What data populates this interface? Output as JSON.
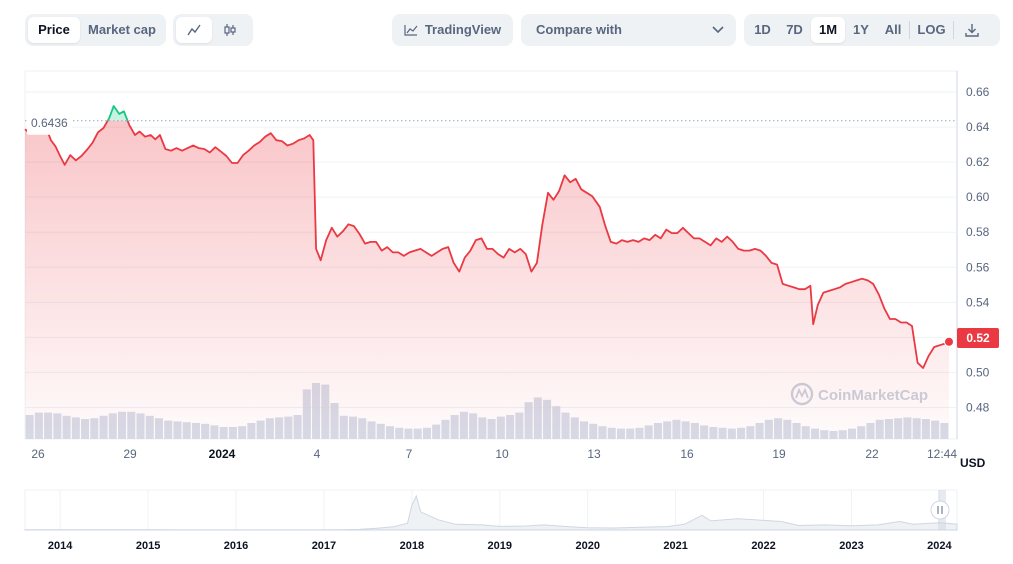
{
  "toolbar": {
    "metric_tabs": [
      {
        "label": "Price",
        "active": true
      },
      {
        "label": "Market cap",
        "active": false
      }
    ],
    "chart_modes": [
      {
        "icon": "line-chart-icon",
        "active": true
      },
      {
        "icon": "candlestick-icon",
        "active": false
      }
    ],
    "tradingview_label": "TradingView",
    "compare_label": "Compare with",
    "ranges": [
      {
        "label": "1D",
        "active": false
      },
      {
        "label": "7D",
        "active": false
      },
      {
        "label": "1M",
        "active": true
      },
      {
        "label": "1Y",
        "active": false
      },
      {
        "label": "All",
        "active": false
      }
    ],
    "log_label": "LOG",
    "download_icon": "download-icon"
  },
  "watermark": "CoinMarketCap",
  "colors": {
    "up": "#16c784",
    "down": "#ea3943",
    "volume": "#cfd6e4",
    "accent_bg": "#eff2f5"
  },
  "chart_data": {
    "type": "line",
    "open_price_label": "0.6436",
    "current_price_label": "0.52",
    "y_ticks": [
      "0.66",
      "0.64",
      "0.62",
      "0.60",
      "0.58",
      "0.56",
      "0.54",
      "0.52",
      "0.50",
      "0.48"
    ],
    "ylim": [
      0.462,
      0.672
    ],
    "x_ticks": [
      "26",
      "29",
      "2024",
      "4",
      "7",
      "10",
      "13",
      "16",
      "19",
      "22",
      "12:44"
    ],
    "bold_x_ticks": [
      "2024"
    ],
    "y_unit": "USD",
    "reference_price": 0.6436,
    "x_range": [
      0,
      100
    ],
    "prices": [
      [
        0,
        0.6388
      ],
      [
        0.5,
        0.6365
      ],
      [
        1,
        0.6395
      ],
      [
        1.6,
        0.6436
      ],
      [
        2.2,
        0.641
      ],
      [
        2.8,
        0.6325
      ],
      [
        3.3,
        0.629
      ],
      [
        3.8,
        0.6235
      ],
      [
        4.3,
        0.6185
      ],
      [
        4.9,
        0.624
      ],
      [
        5.5,
        0.621
      ],
      [
        6.1,
        0.6235
      ],
      [
        6.7,
        0.627
      ],
      [
        7.3,
        0.631
      ],
      [
        7.9,
        0.637
      ],
      [
        8.5,
        0.6395
      ],
      [
        9.1,
        0.645
      ],
      [
        9.6,
        0.652
      ],
      [
        10.2,
        0.6475
      ],
      [
        10.7,
        0.649
      ],
      [
        11.3,
        0.641
      ],
      [
        11.9,
        0.6355
      ],
      [
        12.4,
        0.6375
      ],
      [
        13,
        0.6345
      ],
      [
        13.6,
        0.6355
      ],
      [
        14.1,
        0.633
      ],
      [
        14.6,
        0.6355
      ],
      [
        15.2,
        0.6275
      ],
      [
        15.8,
        0.6265
      ],
      [
        16.4,
        0.628
      ],
      [
        17,
        0.6265
      ],
      [
        17.6,
        0.628
      ],
      [
        18.2,
        0.6295
      ],
      [
        18.8,
        0.628
      ],
      [
        19.4,
        0.6275
      ],
      [
        20,
        0.6255
      ],
      [
        20.6,
        0.6285
      ],
      [
        21.2,
        0.626
      ],
      [
        21.8,
        0.6235
      ],
      [
        22.4,
        0.6195
      ],
      [
        23,
        0.6195
      ],
      [
        23.6,
        0.624
      ],
      [
        24.2,
        0.6265
      ],
      [
        24.8,
        0.6295
      ],
      [
        25.4,
        0.6315
      ],
      [
        26,
        0.6345
      ],
      [
        26.6,
        0.6365
      ],
      [
        27.2,
        0.6325
      ],
      [
        27.8,
        0.632
      ],
      [
        28.4,
        0.6295
      ],
      [
        29,
        0.6305
      ],
      [
        29.6,
        0.6325
      ],
      [
        30.2,
        0.6335
      ],
      [
        30.8,
        0.6355
      ],
      [
        31.2,
        0.6325
      ],
      [
        31.5,
        0.5705
      ],
      [
        32,
        0.564
      ],
      [
        32.6,
        0.5755
      ],
      [
        33.2,
        0.5825
      ],
      [
        33.8,
        0.5775
      ],
      [
        34.4,
        0.5805
      ],
      [
        35,
        0.5845
      ],
      [
        35.6,
        0.5835
      ],
      [
        36.2,
        0.579
      ],
      [
        36.8,
        0.5735
      ],
      [
        37.4,
        0.5745
      ],
      [
        38,
        0.5745
      ],
      [
        38.6,
        0.5695
      ],
      [
        39.2,
        0.5715
      ],
      [
        39.8,
        0.5685
      ],
      [
        40.4,
        0.5685
      ],
      [
        41,
        0.5665
      ],
      [
        41.6,
        0.5685
      ],
      [
        42.2,
        0.5695
      ],
      [
        42.8,
        0.5705
      ],
      [
        43.4,
        0.5685
      ],
      [
        44,
        0.5665
      ],
      [
        44.6,
        0.5685
      ],
      [
        45.2,
        0.5705
      ],
      [
        45.8,
        0.5715
      ],
      [
        46.4,
        0.5625
      ],
      [
        47,
        0.5575
      ],
      [
        47.6,
        0.5655
      ],
      [
        48.2,
        0.5695
      ],
      [
        48.8,
        0.5755
      ],
      [
        49.4,
        0.5765
      ],
      [
        50,
        0.5705
      ],
      [
        50.6,
        0.5705
      ],
      [
        51.2,
        0.5675
      ],
      [
        51.8,
        0.5655
      ],
      [
        52.4,
        0.5705
      ],
      [
        53,
        0.5685
      ],
      [
        53.6,
        0.5705
      ],
      [
        54.2,
        0.5675
      ],
      [
        54.8,
        0.5575
      ],
      [
        55.4,
        0.5625
      ],
      [
        56,
        0.5845
      ],
      [
        56.6,
        0.6025
      ],
      [
        57.2,
        0.5985
      ],
      [
        57.8,
        0.6035
      ],
      [
        58.4,
        0.6125
      ],
      [
        59,
        0.6085
      ],
      [
        59.6,
        0.6105
      ],
      [
        60.2,
        0.6045
      ],
      [
        60.8,
        0.6025
      ],
      [
        61.4,
        0.6005
      ],
      [
        62.2,
        0.5945
      ],
      [
        62.8,
        0.5835
      ],
      [
        63.4,
        0.5745
      ],
      [
        64,
        0.5735
      ],
      [
        64.6,
        0.5755
      ],
      [
        65.2,
        0.5745
      ],
      [
        65.8,
        0.5755
      ],
      [
        66.4,
        0.5745
      ],
      [
        67,
        0.5765
      ],
      [
        67.6,
        0.5755
      ],
      [
        68.2,
        0.5785
      ],
      [
        68.8,
        0.5765
      ],
      [
        69.4,
        0.5815
      ],
      [
        70,
        0.5795
      ],
      [
        70.6,
        0.5795
      ],
      [
        71.2,
        0.5825
      ],
      [
        71.8,
        0.5795
      ],
      [
        72.4,
        0.5765
      ],
      [
        73,
        0.5765
      ],
      [
        73.6,
        0.5745
      ],
      [
        74.2,
        0.5725
      ],
      [
        74.8,
        0.5765
      ],
      [
        75.4,
        0.5745
      ],
      [
        76,
        0.5775
      ],
      [
        76.6,
        0.5745
      ],
      [
        77.2,
        0.5705
      ],
      [
        77.8,
        0.5695
      ],
      [
        78.4,
        0.5695
      ],
      [
        79,
        0.5705
      ],
      [
        79.6,
        0.5695
      ],
      [
        80.2,
        0.5665
      ],
      [
        80.8,
        0.5625
      ],
      [
        81.4,
        0.5615
      ],
      [
        82,
        0.5505
      ],
      [
        82.6,
        0.5495
      ],
      [
        83.2,
        0.5485
      ],
      [
        83.8,
        0.5475
      ],
      [
        84.4,
        0.5475
      ],
      [
        85,
        0.5495
      ],
      [
        85.3,
        0.5275
      ],
      [
        85.8,
        0.5385
      ],
      [
        86.4,
        0.5455
      ],
      [
        87,
        0.5465
      ],
      [
        87.6,
        0.5475
      ],
      [
        88.2,
        0.5485
      ],
      [
        88.8,
        0.5505
      ],
      [
        89.4,
        0.5515
      ],
      [
        90,
        0.5525
      ],
      [
        90.6,
        0.5535
      ],
      [
        91.2,
        0.5525
      ],
      [
        91.8,
        0.5505
      ],
      [
        92.4,
        0.5445
      ],
      [
        93,
        0.5365
      ],
      [
        93.6,
        0.5305
      ],
      [
        94.2,
        0.5305
      ],
      [
        94.8,
        0.5285
      ],
      [
        95.4,
        0.5285
      ],
      [
        96,
        0.5265
      ],
      [
        96.6,
        0.5055
      ],
      [
        97.2,
        0.5025
      ],
      [
        97.8,
        0.5095
      ],
      [
        98.4,
        0.5145
      ],
      [
        99,
        0.5155
      ],
      [
        99.6,
        0.5165
      ],
      [
        100,
        0.5175
      ]
    ],
    "volume": [
      0.3,
      0.33,
      0.33,
      0.32,
      0.29,
      0.27,
      0.25,
      0.26,
      0.29,
      0.32,
      0.34,
      0.34,
      0.32,
      0.29,
      0.26,
      0.23,
      0.22,
      0.21,
      0.2,
      0.19,
      0.17,
      0.15,
      0.15,
      0.16,
      0.2,
      0.23,
      0.26,
      0.27,
      0.28,
      0.3,
      0.62,
      0.7,
      0.68,
      0.45,
      0.29,
      0.28,
      0.26,
      0.22,
      0.19,
      0.16,
      0.14,
      0.13,
      0.13,
      0.14,
      0.18,
      0.24,
      0.3,
      0.34,
      0.32,
      0.27,
      0.25,
      0.28,
      0.3,
      0.33,
      0.46,
      0.52,
      0.49,
      0.41,
      0.33,
      0.27,
      0.22,
      0.19,
      0.16,
      0.14,
      0.13,
      0.13,
      0.14,
      0.17,
      0.2,
      0.22,
      0.24,
      0.22,
      0.2,
      0.17,
      0.15,
      0.14,
      0.13,
      0.14,
      0.16,
      0.2,
      0.24,
      0.26,
      0.24,
      0.2,
      0.16,
      0.13,
      0.11,
      0.1,
      0.11,
      0.13,
      0.16,
      0.2,
      0.24,
      0.25,
      0.26,
      0.27,
      0.26,
      0.25,
      0.23,
      0.2
    ],
    "navigator": {
      "x_ticks": [
        "2014",
        "2015",
        "2016",
        "2017",
        "2018",
        "2019",
        "2020",
        "2021",
        "2022",
        "2023",
        "2024"
      ],
      "x_range": [
        2013.6,
        2024.2
      ],
      "price_history": [
        [
          2013.6,
          0.02
        ],
        [
          2014,
          0.03
        ],
        [
          2014.5,
          0.02
        ],
        [
          2015,
          0.015
        ],
        [
          2015.5,
          0.01
        ],
        [
          2016,
          0.01
        ],
        [
          2016.5,
          0.01
        ],
        [
          2016.9,
          0.01
        ],
        [
          2017.2,
          0.02
        ],
        [
          2017.4,
          0.05
        ],
        [
          2017.6,
          0.15
        ],
        [
          2017.8,
          0.3
        ],
        [
          2017.95,
          0.6
        ],
        [
          2018.0,
          2.2
        ],
        [
          2018.05,
          3.0
        ],
        [
          2018.1,
          1.6
        ],
        [
          2018.3,
          0.9
        ],
        [
          2018.5,
          0.5
        ],
        [
          2018.8,
          0.45
        ],
        [
          2019,
          0.32
        ],
        [
          2019.3,
          0.35
        ],
        [
          2019.5,
          0.45
        ],
        [
          2019.8,
          0.28
        ],
        [
          2020,
          0.2
        ],
        [
          2020.3,
          0.18
        ],
        [
          2020.6,
          0.25
        ],
        [
          2020.9,
          0.3
        ],
        [
          2021.1,
          0.5
        ],
        [
          2021.3,
          1.3
        ],
        [
          2021.4,
          0.8
        ],
        [
          2021.7,
          1.0
        ],
        [
          2021.9,
          0.9
        ],
        [
          2022.2,
          0.75
        ],
        [
          2022.4,
          0.4
        ],
        [
          2022.7,
          0.45
        ],
        [
          2023,
          0.38
        ],
        [
          2023.3,
          0.45
        ],
        [
          2023.55,
          0.75
        ],
        [
          2023.7,
          0.5
        ],
        [
          2023.9,
          0.6
        ],
        [
          2024.0,
          0.64
        ],
        [
          2024.2,
          0.52
        ]
      ]
    }
  }
}
